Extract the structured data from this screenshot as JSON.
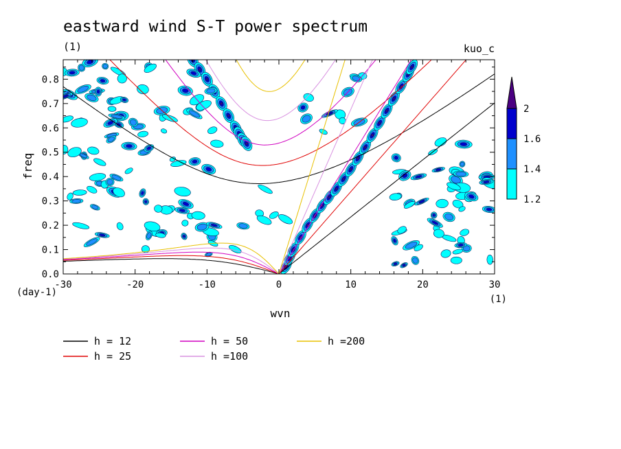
{
  "chart_data": {
    "type": "heatmap",
    "title": "eastward wind S-T power spectrum",
    "subtitle_left": "(1)",
    "subtitle_right": "kuo_c",
    "xlabel": "wvn",
    "ylabel": "freq",
    "x_unit_label": "(1)",
    "y_unit_label": "(day-1)",
    "xlim": [
      -30,
      30
    ],
    "ylim": [
      0,
      0.88
    ],
    "x_ticks": [
      -30,
      -20,
      -10,
      0,
      10,
      20,
      30
    ],
    "x_tick_labels": [
      "-30",
      "-20",
      "-10",
      "0",
      "10",
      "20",
      "30"
    ],
    "y_ticks": [
      0,
      0.1,
      0.2,
      0.3,
      0.4,
      0.5,
      0.6,
      0.7,
      0.8
    ],
    "y_tick_labels": [
      "0.0",
      "0.1",
      "0.2",
      "0.3",
      "0.4",
      "0.5",
      "0.6",
      "0.7",
      "0.8"
    ],
    "colorbar": {
      "levels": [
        1.2,
        1.4,
        1.6,
        2
      ],
      "level_labels": [
        "1.2",
        "1.4",
        "1.6",
        "2"
      ],
      "colors": [
        "#00ffff",
        "#1e90ff",
        "#0000cd",
        "#4b0082"
      ]
    },
    "dispersion_curves": [
      {
        "name": "h = 12",
        "h": 12,
        "color": "#000000"
      },
      {
        "name": "h = 25",
        "h": 25,
        "color": "#e00000"
      },
      {
        "name": "h = 50",
        "h": 50,
        "color": "#d000c0"
      },
      {
        "name": "h =100",
        "h": 100,
        "color": "#d890e0"
      },
      {
        "name": "h =200",
        "h": 200,
        "color": "#e8c000"
      }
    ],
    "kelvin_band": {
      "points": [
        [
          1,
          0.03
        ],
        [
          2,
          0.1
        ],
        [
          4,
          0.2
        ],
        [
          6,
          0.28
        ],
        [
          8,
          0.35
        ],
        [
          10,
          0.43
        ],
        [
          12,
          0.52
        ],
        [
          14,
          0.62
        ],
        [
          16,
          0.72
        ],
        [
          18,
          0.82
        ],
        [
          19,
          0.88
        ]
      ]
    },
    "mrg_band": {
      "points": [
        [
          -12,
          0.88
        ],
        [
          -10,
          0.8
        ],
        [
          -8,
          0.7
        ],
        [
          -6,
          0.6
        ],
        [
          -5,
          0.55
        ],
        [
          -4,
          0.52
        ]
      ]
    }
  }
}
